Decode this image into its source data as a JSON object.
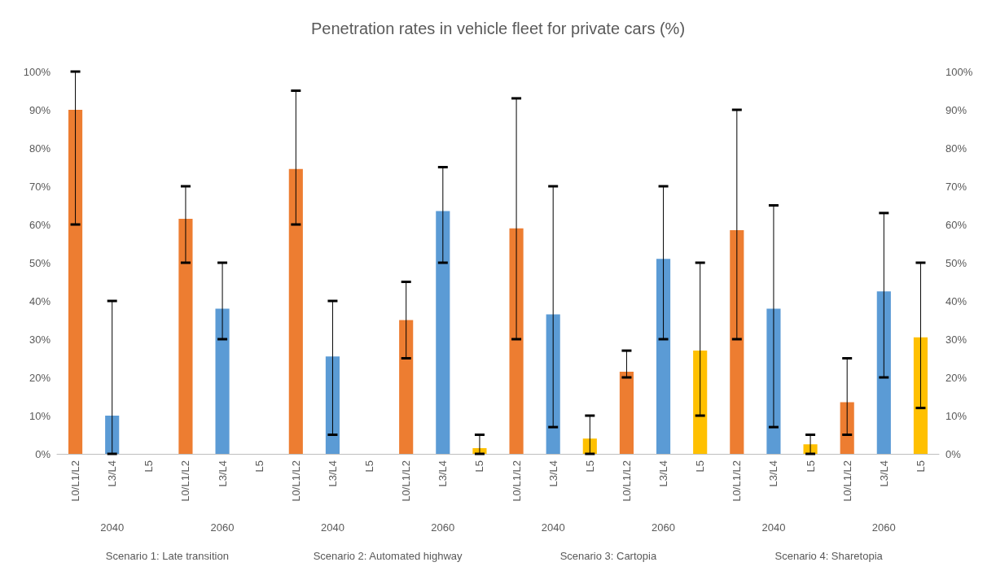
{
  "chart_data": {
    "type": "bar",
    "title": "Penetration rates in vehicle fleet for private cars (%)",
    "categories": [
      "L0/L1/L2",
      "L3/L4",
      "L5",
      "L0/L1/L2",
      "L3/L4",
      "L5",
      "L0/L1/L2",
      "L3/L4",
      "L5",
      "L0/L1/L2",
      "L3/L4",
      "L5",
      "L0/L1/L2",
      "L3/L4",
      "L5",
      "L0/L1/L2",
      "L3/L4",
      "L5",
      "L0/L1/L2",
      "L3/L4",
      "L5",
      "L0/L1/L2",
      "L3/L4",
      "L5"
    ],
    "values": [
      90,
      10,
      0,
      61.5,
      38,
      0,
      74.5,
      25.5,
      0,
      35,
      63.5,
      1.5,
      59,
      36.5,
      4,
      21.5,
      51,
      27,
      58.5,
      38,
      2.5,
      13.5,
      42.5,
      30.5
    ],
    "colors": [
      "#ed7d31",
      "#5b9bd5",
      "#ffc000",
      "#ed7d31",
      "#5b9bd5",
      "#ffc000",
      "#ed7d31",
      "#5b9bd5",
      "#ffc000",
      "#ed7d31",
      "#5b9bd5",
      "#ffc000",
      "#ed7d31",
      "#5b9bd5",
      "#ffc000",
      "#ed7d31",
      "#5b9bd5",
      "#ffc000",
      "#ed7d31",
      "#5b9bd5",
      "#ffc000",
      "#ed7d31",
      "#5b9bd5",
      "#ffc000"
    ],
    "errors": [
      [
        60,
        100
      ],
      [
        0,
        40
      ],
      null,
      [
        50,
        70
      ],
      [
        30,
        50
      ],
      null,
      [
        60,
        95
      ],
      [
        5,
        40
      ],
      null,
      [
        25,
        45
      ],
      [
        50,
        75
      ],
      [
        0,
        5
      ],
      [
        30,
        93
      ],
      [
        7,
        70
      ],
      [
        0,
        10
      ],
      [
        20,
        27
      ],
      [
        30,
        70
      ],
      [
        10,
        50
      ],
      [
        30,
        90
      ],
      [
        7,
        65
      ],
      [
        0,
        5
      ],
      [
        5,
        25
      ],
      [
        20,
        63
      ],
      [
        12,
        50
      ]
    ],
    "annotations": [
      "2040",
      "2060",
      "2040",
      "2060",
      "2040",
      "2060",
      "2040",
      "2060",
      "Scenario 1: Late transition",
      "Scenario 2: Automated highway",
      "Scenario 3: Cartopia",
      "Scenario 4: Sharetopia"
    ],
    "ylim": [
      0,
      100
    ],
    "yticks": [
      {
        "value": 0,
        "label": "0%"
      },
      {
        "value": 10,
        "label": "10%"
      },
      {
        "value": 20,
        "label": "20%"
      },
      {
        "value": 30,
        "label": "30%"
      },
      {
        "value": 40,
        "label": "40%"
      },
      {
        "value": 50,
        "label": "50%"
      },
      {
        "value": 60,
        "label": "60%"
      },
      {
        "value": 70,
        "label": "70%"
      },
      {
        "value": 80,
        "label": "80%"
      },
      {
        "value": 90,
        "label": "90%"
      },
      {
        "value": 100,
        "label": "100%"
      }
    ],
    "y2lim": [
      0,
      100
    ],
    "y2ticks": [
      {
        "value": 0,
        "label": "0%"
      },
      {
        "value": 10,
        "label": "10%"
      },
      {
        "value": 20,
        "label": "20%"
      },
      {
        "value": 30,
        "label": "30%"
      },
      {
        "value": 40,
        "label": "40%"
      },
      {
        "value": 50,
        "label": "50%"
      },
      {
        "value": 60,
        "label": "60%"
      },
      {
        "value": 70,
        "label": "70%"
      },
      {
        "value": 80,
        "label": "80%"
      },
      {
        "value": 90,
        "label": "90%"
      },
      {
        "value": 100,
        "label": "100%"
      }
    ],
    "grid": false
  }
}
